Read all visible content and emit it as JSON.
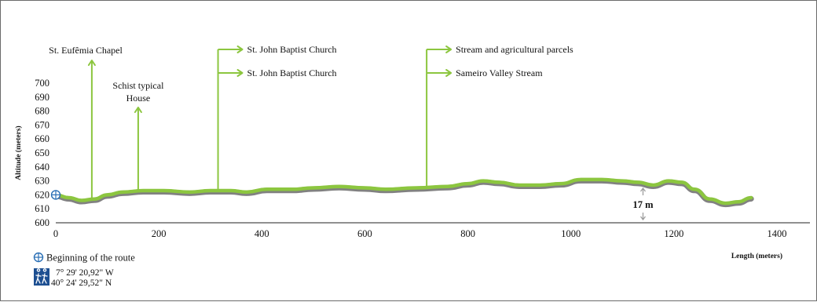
{
  "chart_data": {
    "type": "line",
    "xlabel": "Length (meters)",
    "ylabel": "Altitude (meters)",
    "xlim": [
      0,
      1400
    ],
    "ylim": [
      600,
      700
    ],
    "x_ticks": [
      "0",
      "200",
      "400",
      "600",
      "800",
      "1000",
      "1200",
      "1400"
    ],
    "y_ticks": [
      "600",
      "610",
      "620",
      "630",
      "640",
      "650",
      "660",
      "670",
      "680",
      "690",
      "700"
    ],
    "series": [
      {
        "color": "#8cc63f",
        "points": [
          [
            0,
            620
          ],
          [
            25,
            618
          ],
          [
            50,
            616
          ],
          [
            75,
            617
          ],
          [
            100,
            620
          ],
          [
            130,
            622
          ],
          [
            170,
            623
          ],
          [
            210,
            623
          ],
          [
            260,
            622
          ],
          [
            300,
            623
          ],
          [
            340,
            623
          ],
          [
            370,
            622
          ],
          [
            410,
            624
          ],
          [
            460,
            624
          ],
          [
            500,
            625
          ],
          [
            550,
            626
          ],
          [
            600,
            625
          ],
          [
            640,
            624
          ],
          [
            700,
            625
          ],
          [
            760,
            626
          ],
          [
            800,
            628
          ],
          [
            830,
            630
          ],
          [
            860,
            629
          ],
          [
            900,
            627
          ],
          [
            940,
            627
          ],
          [
            980,
            628
          ],
          [
            1020,
            631
          ],
          [
            1060,
            631
          ],
          [
            1100,
            630
          ],
          [
            1130,
            629
          ],
          [
            1160,
            627
          ],
          [
            1190,
            630
          ],
          [
            1215,
            629
          ],
          [
            1240,
            624
          ],
          [
            1270,
            617
          ],
          [
            1300,
            614
          ],
          [
            1325,
            615
          ],
          [
            1350,
            618
          ]
        ]
      }
    ],
    "annotations": [
      {
        "x": 70,
        "text": "St. Eufêmia Chapel"
      },
      {
        "x": 160,
        "text": "Schist typical\nHouse"
      },
      {
        "x": 315,
        "text": "St. John Baptist Church"
      },
      {
        "x": 315,
        "text": "St. John Baptist Church"
      },
      {
        "x": 720,
        "text": "Stream and agricultural parcels"
      },
      {
        "x": 720,
        "text": "Sameiro Valley Stream"
      }
    ],
    "elevation_difference": {
      "x": 1140,
      "text": "17 m"
    }
  },
  "legend": {
    "start_label": "Beginning of the route",
    "longitude": "7° 29' 20,92\" W",
    "latitude": "40° 24' 29,52\" N"
  },
  "colors": {
    "line": "#8cc63f",
    "line_shadow": "#6b6b6b",
    "start_marker": "#2a6fb5",
    "hiker_badge": "#1d4f91"
  },
  "icons": {
    "start": "crosshair-circle-icon",
    "hiker": "hikers-icon",
    "diff_arrows": "up-down-arrow-icon"
  }
}
